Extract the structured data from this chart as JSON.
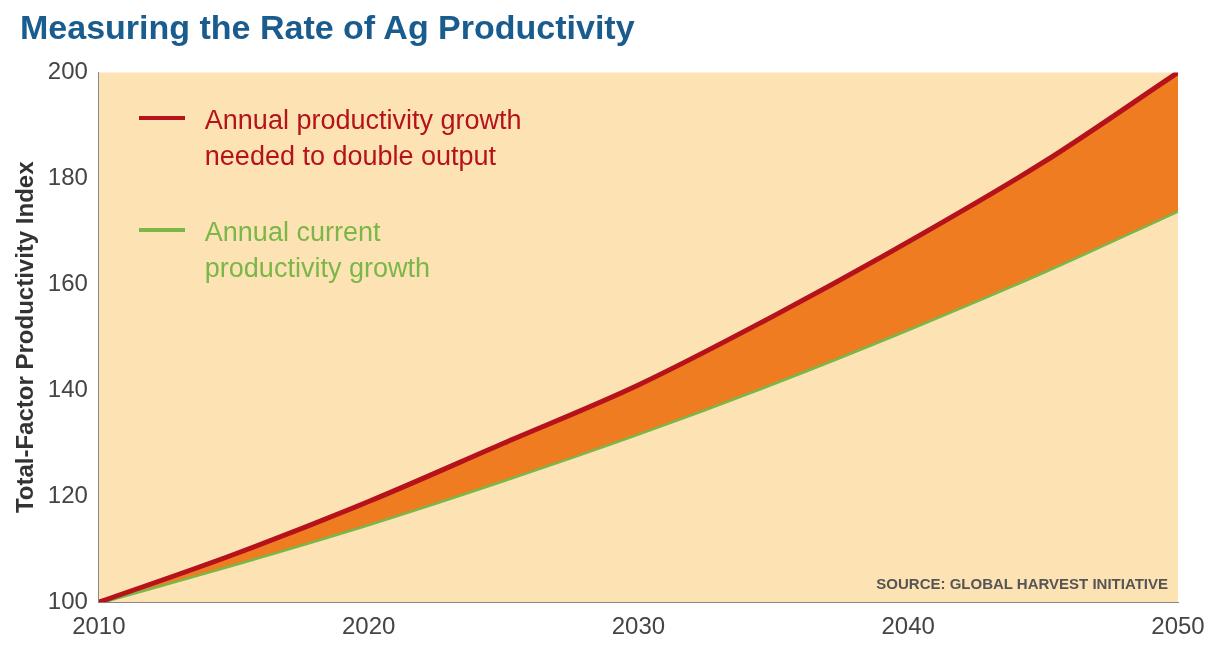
{
  "chart_data": {
    "type": "line",
    "title": "Measuring the Rate of Ag Productivity",
    "ylabel": "Total-Factor Productivity Index",
    "x": [
      2010,
      2015,
      2020,
      2025,
      2030,
      2035,
      2040,
      2045,
      2050
    ],
    "series": [
      {
        "type": "area",
        "name": "Annual productivity growth\nneeded to double output",
        "color": "#b5121b",
        "values": [
          100,
          109,
          119,
          130,
          141,
          154,
          168,
          183,
          200
        ]
      },
      {
        "name": "Annual current\nproductivity growth",
        "color": "#7ab648",
        "values": [
          100,
          107.2,
          114.8,
          123.1,
          131.9,
          141.4,
          151.6,
          162.4,
          174
        ]
      }
    ],
    "xlim": [
      2010,
      2050
    ],
    "xticks": [
      2010,
      2020,
      2030,
      2040,
      2050
    ],
    "ylim": [
      100,
      200
    ],
    "yticks": [
      100,
      120,
      140,
      160,
      180,
      200
    ],
    "grid": false,
    "legend": "top left",
    "marker": "none",
    "line_style": "solid",
    "annotations": [
      "SOURCE: GLOBAL HARVEST INITIATIVE"
    ]
  }
}
